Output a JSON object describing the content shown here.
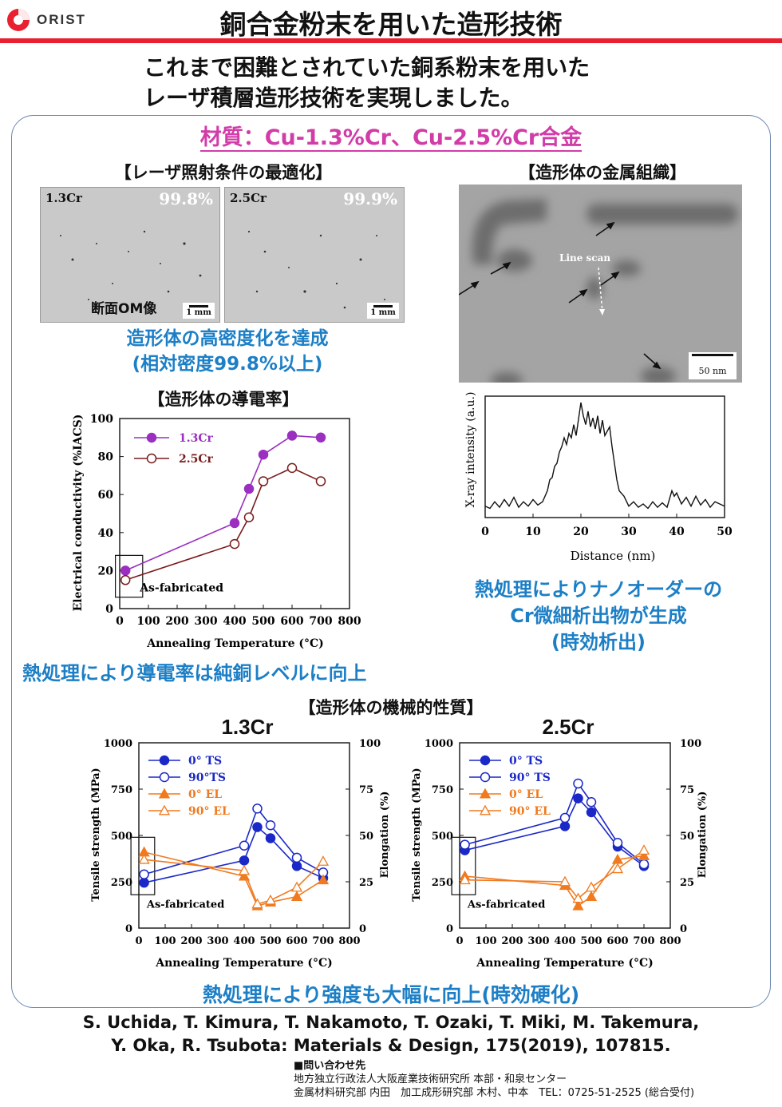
{
  "header": {
    "logo_text": "ORIST",
    "title": "銅合金粉末を用いた造形技術",
    "subtitle_line1": "これまで困難とされていた銅系粉末を用いた",
    "subtitle_line2": "レーザ積層造形技術を実現しました。",
    "accent_color": "#e8202f"
  },
  "material": "材質：Cu-1.3%Cr、Cu-2.5%Cr合金",
  "laser_section": {
    "heading": "【レーザ照射条件の最適化】",
    "images": [
      {
        "label": "1.3Cr",
        "density": "99.8%",
        "scale": "1 mm"
      },
      {
        "label": "2.5Cr",
        "density": "99.9%",
        "scale": "1 mm"
      }
    ],
    "caption": "断面OM像",
    "result_line1": "造形体の高密度化を達成",
    "result_line2": "(相対密度99.8%以上)"
  },
  "structure_section": {
    "heading": "【造形体の金属組織】",
    "tem_label": "Line scan",
    "tem_scale": "50 nm",
    "result_line1": "熱処理によりナノオーダーの",
    "result_line2": "Cr微細析出物が生成",
    "result_line3": "(時効析出)"
  },
  "conductivity_section": {
    "heading": "【造形体の導電率】",
    "result": "熱処理により導電率は純銅レベルに向上"
  },
  "mechanical_section": {
    "heading": "【造形体の機械的性質】",
    "result": "熱処理により強度も大幅に向上(時効硬化)"
  },
  "chart_data": [
    {
      "id": "conductivity",
      "type": "line",
      "xlabel": "Annealing Temperature (°C)",
      "ylabel": "Electrical conductivity (%IACS)",
      "xlim": [
        0,
        800
      ],
      "ylim": [
        0,
        100
      ],
      "xticks": [
        0,
        100,
        200,
        300,
        400,
        500,
        600,
        700,
        800
      ],
      "yticks": [
        0,
        20,
        40,
        60,
        80,
        100
      ],
      "annotation": "As-fabricated",
      "legend_position": "top-left",
      "series": [
        {
          "name": "1.3Cr",
          "color": "#9a2fc0",
          "filled": true,
          "x": [
            20,
            400,
            450,
            500,
            600,
            700
          ],
          "y": [
            20,
            45,
            63,
            81,
            91,
            90
          ]
        },
        {
          "name": "2.5Cr",
          "color": "#7a1a1a",
          "filled": false,
          "x": [
            20,
            400,
            450,
            500,
            600,
            700
          ],
          "y": [
            15,
            34,
            48,
            67,
            74,
            67
          ]
        }
      ]
    },
    {
      "id": "line-scan",
      "type": "line",
      "xlabel": "Distance (nm)",
      "ylabel": "X-ray intensity (a.u.)",
      "xlim": [
        0,
        50
      ],
      "xticks": [
        0,
        10,
        20,
        30,
        40,
        50
      ],
      "ylim": [
        0,
        1
      ],
      "series": [
        {
          "color": "#111111",
          "x": [
            0,
            1,
            2,
            3,
            4,
            5,
            6,
            7,
            8,
            9,
            10,
            11,
            12,
            13,
            13.5,
            14,
            14.5,
            15,
            15.5,
            16,
            16.5,
            17,
            17.5,
            18,
            18.5,
            19,
            19.5,
            20,
            20.5,
            21,
            21.5,
            22,
            22.5,
            23,
            23.5,
            24,
            24.5,
            25,
            25.5,
            26,
            26.5,
            27,
            27.5,
            28,
            29,
            30,
            31,
            32,
            33,
            34,
            35,
            36,
            37,
            38,
            39,
            39.5,
            40,
            41,
            42,
            43,
            44,
            45,
            46,
            47,
            48,
            49,
            50
          ],
          "y": [
            0.06,
            0.04,
            0.1,
            0.05,
            0.12,
            0.06,
            0.14,
            0.05,
            0.1,
            0.06,
            0.12,
            0.07,
            0.1,
            0.2,
            0.3,
            0.32,
            0.42,
            0.45,
            0.55,
            0.6,
            0.68,
            0.62,
            0.72,
            0.68,
            0.8,
            0.7,
            0.85,
            1.0,
            0.88,
            0.8,
            0.92,
            0.78,
            0.86,
            0.76,
            0.88,
            0.72,
            0.84,
            0.7,
            0.74,
            0.78,
            0.6,
            0.45,
            0.3,
            0.2,
            0.15,
            0.06,
            0.1,
            0.05,
            0.08,
            0.04,
            0.1,
            0.05,
            0.09,
            0.05,
            0.2,
            0.15,
            0.18,
            0.08,
            0.14,
            0.06,
            0.15,
            0.07,
            0.12,
            0.05,
            0.1,
            0.08,
            0.06
          ]
        }
      ]
    },
    {
      "id": "mech-1.3Cr",
      "title": "1.3Cr",
      "type": "line",
      "xlabel": "Annealing Temperature (°C)",
      "ylabel": "Tensile strength (MPa)",
      "y2label": "Elongation (%)",
      "xlim": [
        0,
        800
      ],
      "ylim": [
        0,
        1000
      ],
      "y2lim": [
        0,
        100
      ],
      "xticks": [
        0,
        100,
        200,
        300,
        400,
        500,
        600,
        700,
        800
      ],
      "yticks": [
        0,
        250,
        500,
        750,
        1000
      ],
      "y2ticks": [
        0,
        25,
        50,
        75,
        100
      ],
      "annotation": "As-fabricated",
      "legend_position": "top-left",
      "series": [
        {
          "name": "0° TS",
          "axis": "left",
          "color": "#1a28c8",
          "marker": "circle",
          "filled": true,
          "x": [
            20,
            400,
            450,
            500,
            600,
            700
          ],
          "y": [
            245,
            365,
            545,
            485,
            335,
            270
          ]
        },
        {
          "name": "90°TS",
          "axis": "left",
          "color": "#1a28c8",
          "marker": "circle",
          "filled": false,
          "x": [
            20,
            400,
            450,
            500,
            600,
            700
          ],
          "y": [
            290,
            445,
            645,
            555,
            380,
            300
          ]
        },
        {
          "name": "0° EL",
          "axis": "right",
          "color": "#f07a1f",
          "marker": "triangle",
          "filled": true,
          "x": [
            20,
            400,
            450,
            500,
            600,
            700
          ],
          "y": [
            41,
            28,
            12,
            14,
            17,
            26
          ]
        },
        {
          "name": "90° EL",
          "axis": "right",
          "color": "#f07a1f",
          "marker": "triangle",
          "filled": false,
          "x": [
            20,
            400,
            450,
            500,
            600,
            700
          ],
          "y": [
            37,
            31,
            13,
            15,
            22,
            36
          ]
        }
      ]
    },
    {
      "id": "mech-2.5Cr",
      "title": "2.5Cr",
      "type": "line",
      "xlabel": "Annealing Temperature (°C)",
      "ylabel": "Tensile strength (MPa)",
      "y2label": "Elongation (%)",
      "xlim": [
        0,
        800
      ],
      "ylim": [
        0,
        1000
      ],
      "y2lim": [
        0,
        100
      ],
      "xticks": [
        0,
        100,
        200,
        300,
        400,
        500,
        600,
        700,
        800
      ],
      "yticks": [
        0,
        250,
        500,
        750,
        1000
      ],
      "y2ticks": [
        0,
        25,
        50,
        75,
        100
      ],
      "annotation": "As-fabricated",
      "legend_position": "top-left",
      "series": [
        {
          "name": "0° TS",
          "axis": "left",
          "color": "#1a28c8",
          "marker": "circle",
          "filled": true,
          "x": [
            20,
            400,
            450,
            500,
            600,
            700
          ],
          "y": [
            420,
            550,
            700,
            625,
            440,
            335
          ]
        },
        {
          "name": "90° TS",
          "axis": "left",
          "color": "#1a28c8",
          "marker": "circle",
          "filled": false,
          "x": [
            20,
            400,
            450,
            500,
            600,
            700
          ],
          "y": [
            450,
            595,
            780,
            680,
            460,
            345
          ]
        },
        {
          "name": "0° EL",
          "axis": "right",
          "color": "#f07a1f",
          "marker": "triangle",
          "filled": true,
          "x": [
            20,
            400,
            450,
            500,
            600,
            700
          ],
          "y": [
            28,
            23,
            12,
            17,
            37,
            39
          ]
        },
        {
          "name": "90° EL",
          "axis": "right",
          "color": "#f07a1f",
          "marker": "triangle",
          "filled": false,
          "x": [
            20,
            400,
            450,
            500,
            600,
            700
          ],
          "y": [
            26,
            25,
            16,
            22,
            32,
            42
          ]
        }
      ]
    }
  ],
  "reference_line1": "S. Uchida, T. Kimura, T. Nakamoto, T. Ozaki, T. Miki, M. Takemura,",
  "reference_line2": "Y. Oka, R. Tsubota: Materials & Design, 175(2019), 107815.",
  "contact": {
    "heading": "■問い合わせ先",
    "line1": "地方独立行政法人大阪産業技術研究所 本部・和泉センター",
    "line2": "金属材料研究部 内田　加工成形研究部 木村、中本　TEL：0725-51-2525 (総合受付)"
  }
}
